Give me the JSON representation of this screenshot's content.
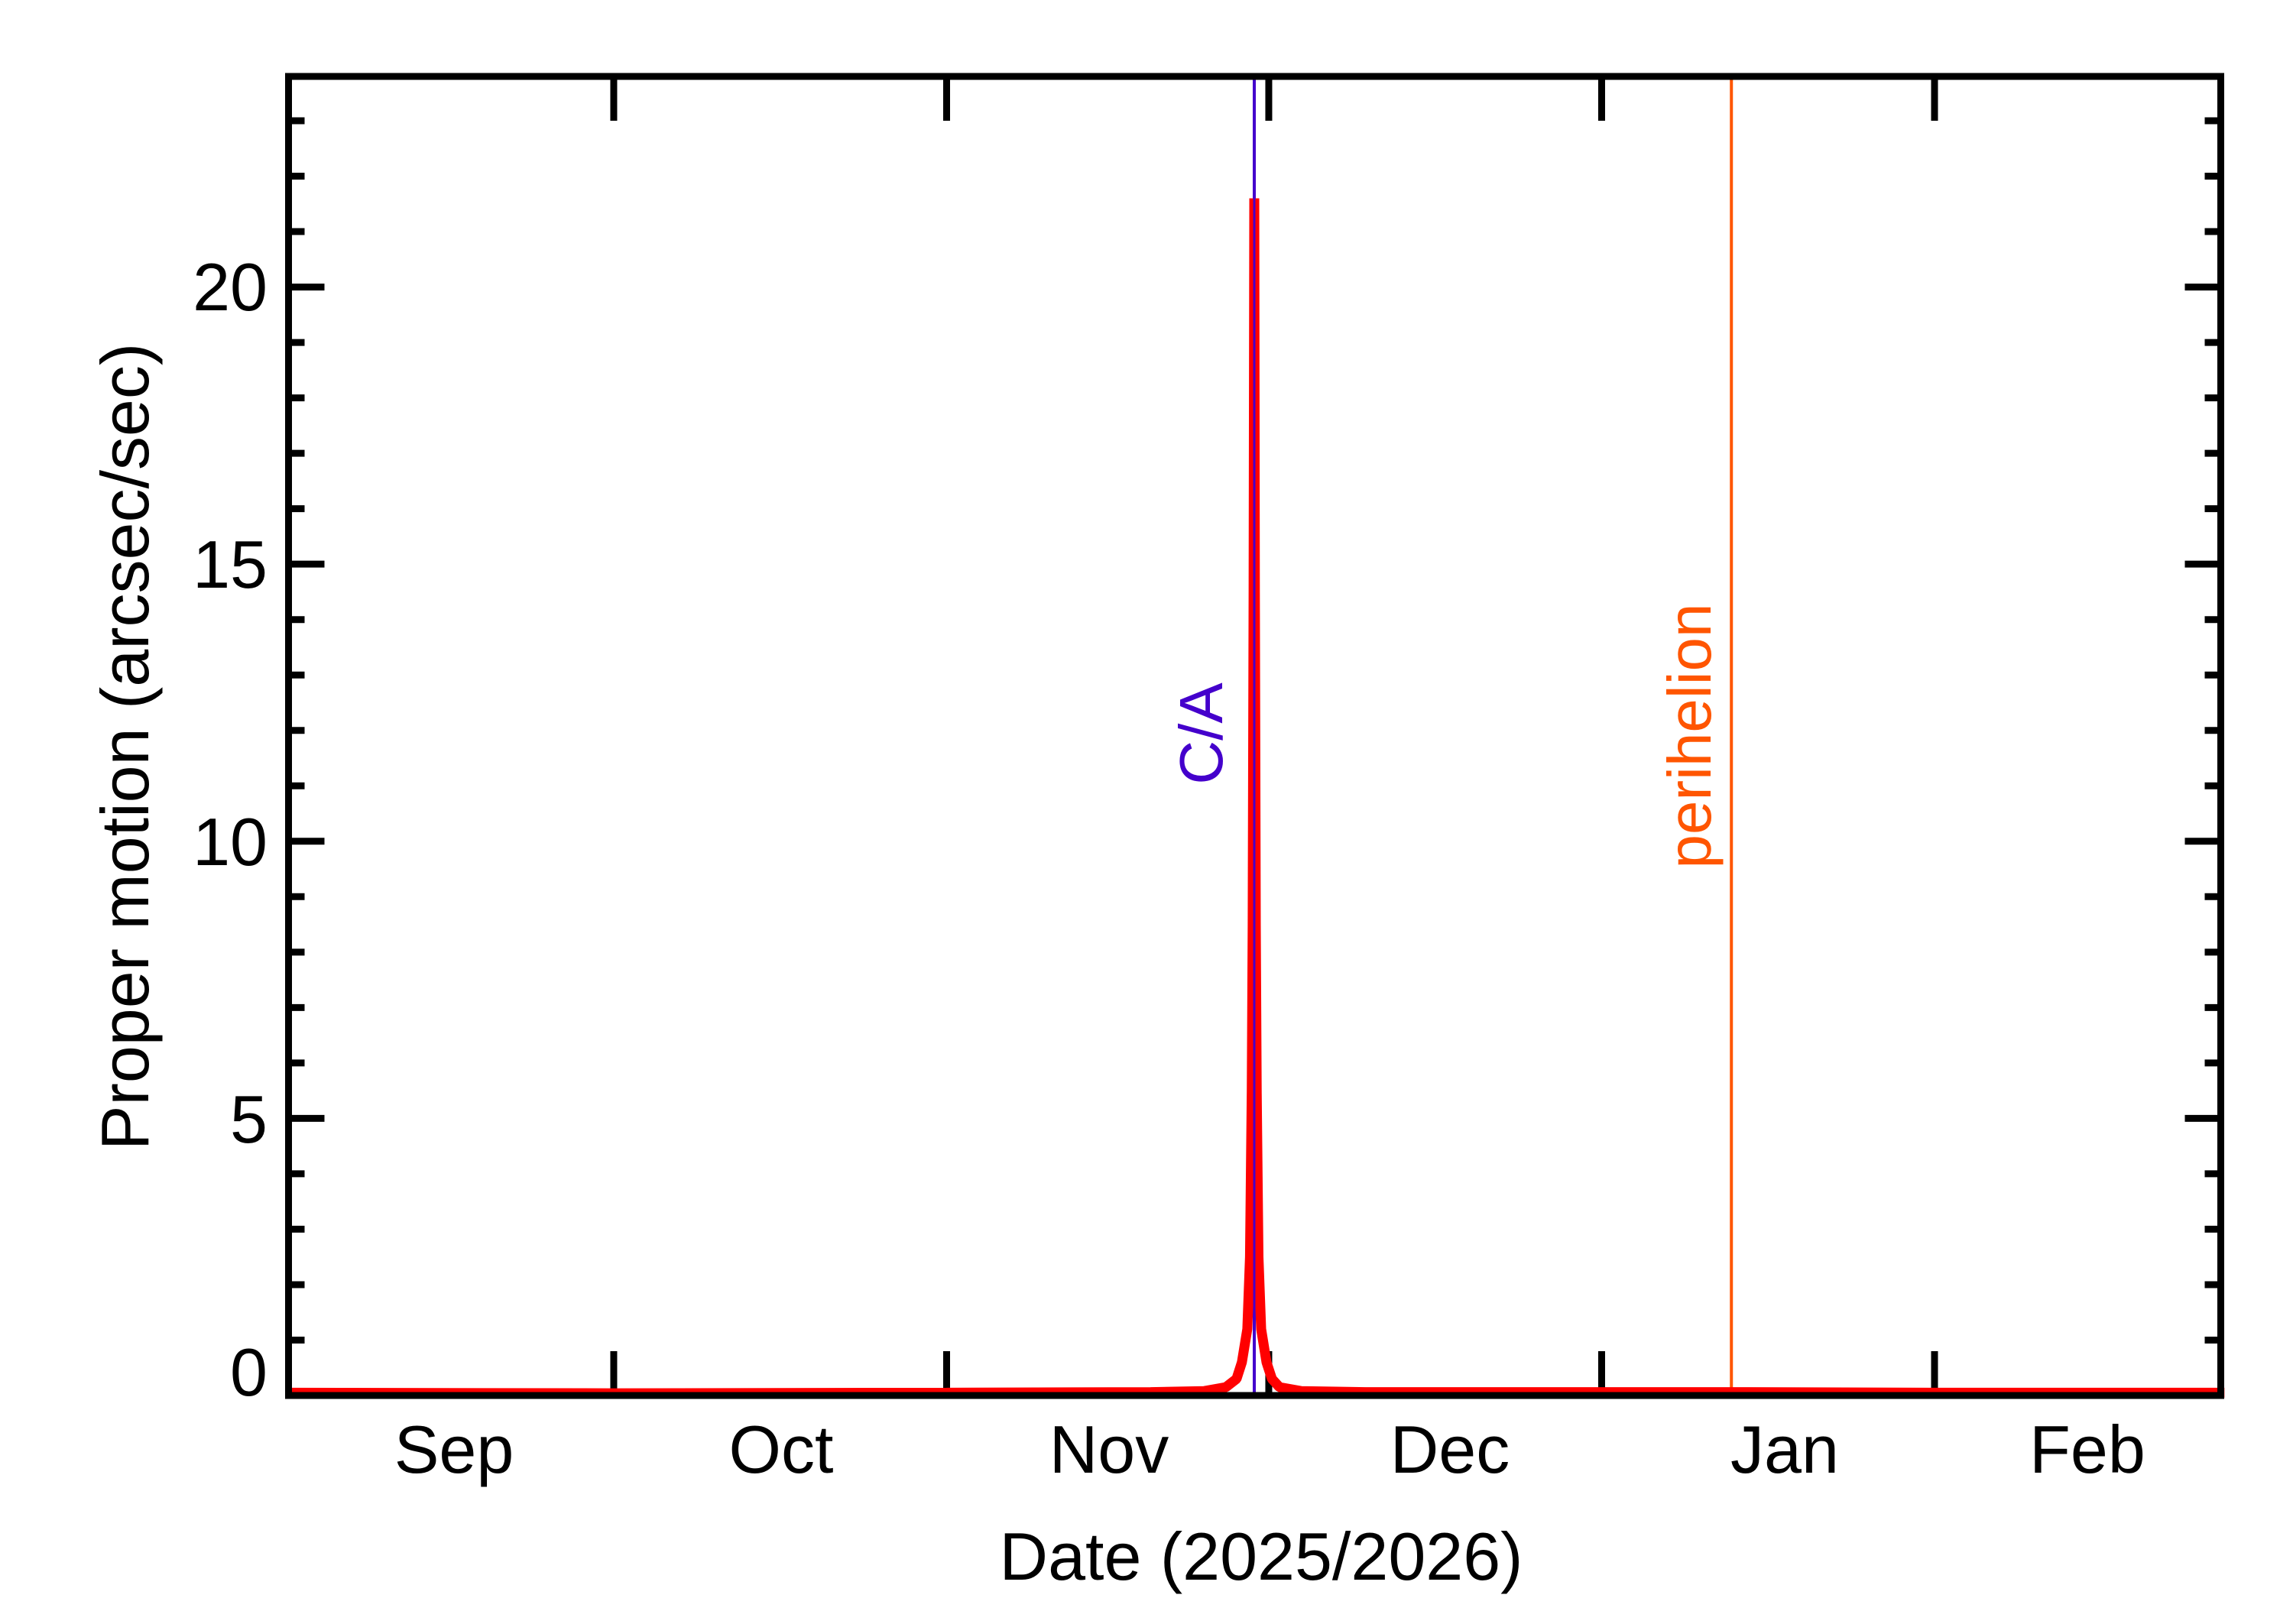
{
  "chart_data": {
    "type": "line",
    "title": "",
    "xlabel": "Date (2025/2026)",
    "ylabel": "Proper motion (arcsec/sec)",
    "xlim": [
      "2025-09-01",
      "2026-02-28"
    ],
    "ylim": [
      0,
      23.8
    ],
    "grid": false,
    "legend": null,
    "x_tick_labels": [
      {
        "label": "Sep",
        "center": "2025-09-15T12:00"
      },
      {
        "label": "Oct",
        "center": "2025-10-16T12:00"
      },
      {
        "label": "Nov",
        "center": "2025-11-15T12:00"
      },
      {
        "label": "Dec",
        "center": "2025-12-16T12:00"
      },
      {
        "label": "Jan",
        "center": "2026-01-16T12:00"
      },
      {
        "label": "Feb",
        "center": "2026-02-15T00:00"
      }
    ],
    "x_major_ticks": [
      "2025-10-01",
      "2025-11-01",
      "2025-12-01",
      "2026-01-01",
      "2026-02-01"
    ],
    "y_ticks": [
      0,
      5,
      10,
      15,
      20
    ],
    "y_tick_labels": [
      "0",
      "5",
      "10",
      "15",
      "20"
    ],
    "y_minor_step": 1,
    "series": [
      {
        "name": "Proper motion",
        "color": "#FF0000",
        "points": [
          [
            "2025-09-01T00:00",
            0.05
          ],
          [
            "2025-10-01T00:00",
            0.04
          ],
          [
            "2025-11-01T00:00",
            0.05
          ],
          [
            "2025-11-20T00:00",
            0.06
          ],
          [
            "2025-11-25T00:00",
            0.08
          ],
          [
            "2025-11-27T00:00",
            0.15
          ],
          [
            "2025-11-28T00:00",
            0.3
          ],
          [
            "2025-11-28T12:00",
            0.6
          ],
          [
            "2025-11-29T00:00",
            1.2
          ],
          [
            "2025-11-29T06:00",
            2.5
          ],
          [
            "2025-11-29T10:00",
            5.5
          ],
          [
            "2025-11-29T12:00",
            8.5
          ],
          [
            "2025-11-29T14:00",
            14.5
          ],
          [
            "2025-11-29T15:36",
            21.6
          ],
          [
            "2025-11-29T17:00",
            14.5
          ],
          [
            "2025-11-29T19:00",
            8.5
          ],
          [
            "2025-11-29T21:00",
            5.5
          ],
          [
            "2025-11-30T01:00",
            2.5
          ],
          [
            "2025-11-30T07:00",
            1.2
          ],
          [
            "2025-11-30T19:00",
            0.6
          ],
          [
            "2025-12-01T07:00",
            0.3
          ],
          [
            "2025-12-02T00:00",
            0.15
          ],
          [
            "2025-12-04T00:00",
            0.08
          ],
          [
            "2025-12-10T00:00",
            0.06
          ],
          [
            "2026-01-01T00:00",
            0.06
          ],
          [
            "2026-01-13T00:00",
            0.06
          ],
          [
            "2026-02-01T00:00",
            0.05
          ],
          [
            "2026-02-28T00:00",
            0.05
          ]
        ]
      }
    ],
    "annotations": [
      {
        "label": "C/A",
        "date": "2025-11-29T15:36",
        "color": "#4400CC",
        "type": "vertical-line"
      },
      {
        "label": "perihelion",
        "date": "2026-01-13T02:00",
        "color": "#FF5500",
        "type": "vertical-line"
      }
    ]
  },
  "labels": {
    "xlabel": "Date (2025/2026)",
    "ylabel": "Proper motion (arcsec/sec)",
    "ca": "C/A",
    "perihelion": "perihelion",
    "y_ticks": [
      "0",
      "5",
      "10",
      "15",
      "20"
    ],
    "x_ticks": [
      "Sep",
      "Oct",
      "Nov",
      "Dec",
      "Jan",
      "Feb"
    ]
  }
}
